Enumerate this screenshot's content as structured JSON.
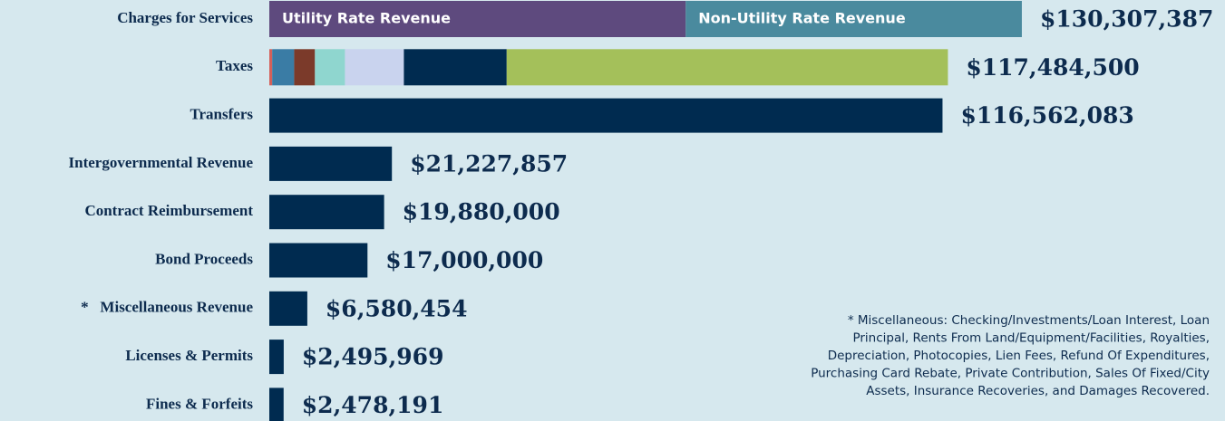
{
  "chart_data": {
    "type": "bar",
    "orientation": "horizontal",
    "categories": [
      "Charges for Services",
      "Taxes",
      "Transfers",
      "Intergovernmental Revenue",
      "Contract Reimbursement",
      "Bond Proceeds",
      "*   Miscellaneous Revenue",
      "Licenses & Permits",
      "Fines & Forfeits"
    ],
    "values": [
      130307387,
      117484500,
      116562083,
      21227857,
      19880000,
      17000000,
      6580454,
      2495969,
      2478191
    ],
    "value_labels": [
      "$130,307,387",
      "$117,484,500",
      "$116,562,083",
      "$21,227,857",
      "$19,880,000",
      "$17,000,000",
      "$6,580,454",
      "$2,495,969",
      "$2,478,191"
    ],
    "color": "#002b50",
    "segments": [
      [
        {
          "label": "Utility Rate Revenue",
          "color": "#5e4a7e",
          "value": 72100000
        },
        {
          "label": "Non-Utility Rate Revenue",
          "color": "#4a8a9e",
          "value": 58200000
        }
      ],
      [
        {
          "color": "#d4605a",
          "value": 500000
        },
        {
          "color": "#3a7ca5",
          "value": 3800000
        },
        {
          "color": "#7b3a2a",
          "value": 3600000
        },
        {
          "color": "#8fd6cf",
          "value": 5200000
        },
        {
          "color": "#c9d3ee",
          "value": 10200000
        },
        {
          "color": "#002b50",
          "value": 17800000
        },
        {
          "color": "#a4c05a",
          "value": 76400000
        }
      ],
      null,
      null,
      null,
      null,
      null,
      null,
      null
    ],
    "annotation": [
      "* Miscellaneous: Checking/Investments/Loan Interest, Loan",
      "Principal,  Rents From Land/Equipment/Facilities, Royalties,",
      "Depreciation, Photocopies, Lien Fees, Refund Of Expenditures,",
      "Purchasing Card Rebate, Private Contribution, Sales Of Fixed/City",
      "Assets, Insurance Recoveries, and Damages Recovered."
    ]
  }
}
